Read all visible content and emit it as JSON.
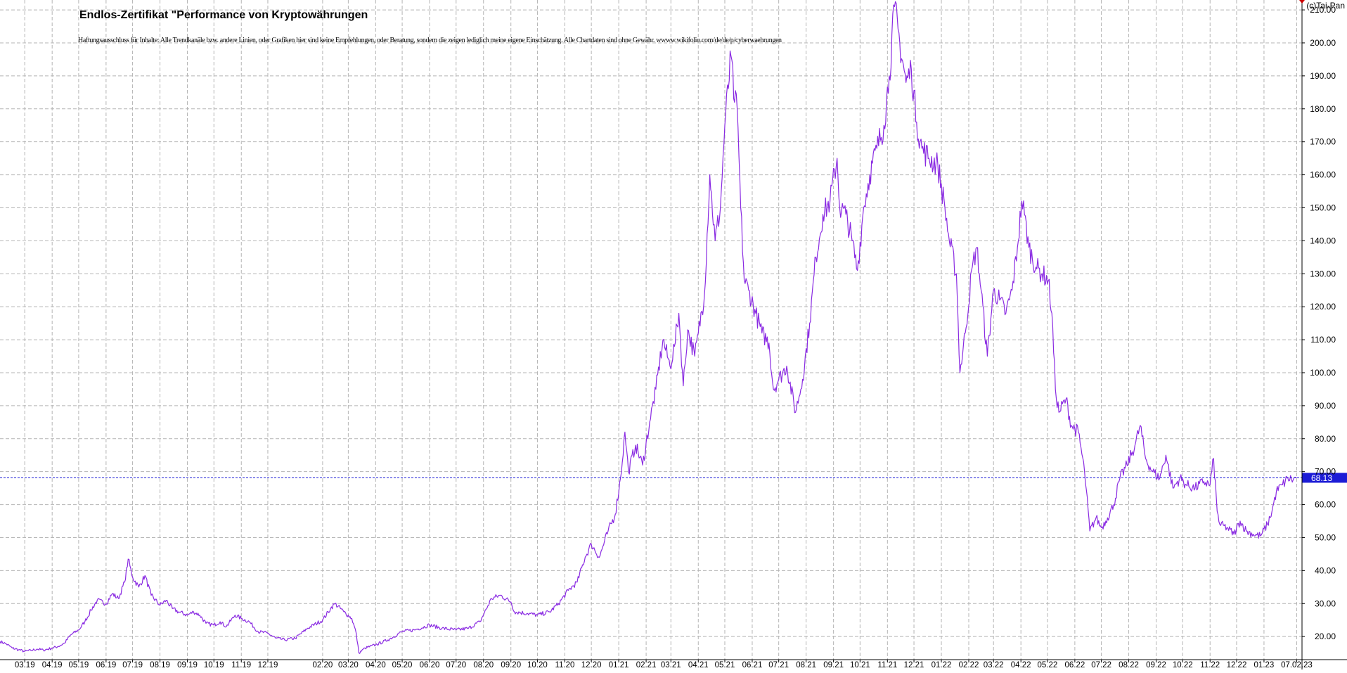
{
  "chart_title": "Endlos-Zertifikat \"Performance von Kryptowährungen",
  "disclaimer": "Haftungsausschluss für Inhalte: Alle Trendkanäle bzw. andere Linien, oder Grafiken hier sind keine Empfehlungen, oder Beratung, sondern die zeigen lediglich meine eigene Einschätzung. Alle Chartdaten sind ohne Gewähr. wwww.wikifolio.com/de/de/p/cyberwaehrungen",
  "copyright": "(c)Tai-Pan",
  "colors": {
    "line": "#8a2be2",
    "current_marker": "#1c1cd6",
    "grid": "#b4b4b4",
    "background": "#ffffff"
  },
  "chart_data": {
    "type": "line",
    "title": "Endlos-Zertifikat \"Performance von Kryptowährungen",
    "xlabel": "",
    "ylabel": "",
    "ylim": [
      13,
      213
    ],
    "y_ticks": [
      20,
      30,
      40,
      50,
      60,
      70,
      80,
      90,
      100,
      110,
      120,
      130,
      140,
      150,
      160,
      170,
      180,
      190,
      200,
      210
    ],
    "y_tick_labels": [
      "20.00",
      "30.00",
      "40.00",
      "50.00",
      "60.00",
      "70.00",
      "80.00",
      "90.00",
      "100.00",
      "110.00",
      "120.00",
      "130.00",
      "140.00",
      "150.00",
      "160.00",
      "170.00",
      "180.00",
      "190.00",
      "200.00",
      "210.00"
    ],
    "x_range": [
      "2019-02-01",
      "2023-02-13"
    ],
    "x_ticks": [
      {
        "label": "03.19",
        "date": "2019-03-01"
      },
      {
        "label": "04.19",
        "date": "2019-04-01"
      },
      {
        "label": "05.19",
        "date": "2019-05-01"
      },
      {
        "label": "06.19",
        "date": "2019-06-01"
      },
      {
        "label": "07.19",
        "date": "2019-07-01"
      },
      {
        "label": "08.19",
        "date": "2019-08-01"
      },
      {
        "label": "09.19",
        "date": "2019-09-01"
      },
      {
        "label": "10.19",
        "date": "2019-10-01"
      },
      {
        "label": "11.19",
        "date": "2019-11-01"
      },
      {
        "label": "12.19",
        "date": "2019-12-01"
      },
      {
        "label": "02.20",
        "date": "2020-02-01"
      },
      {
        "label": "03.20",
        "date": "2020-03-01"
      },
      {
        "label": "04.20",
        "date": "2020-04-01"
      },
      {
        "label": "05.20",
        "date": "2020-05-01"
      },
      {
        "label": "06.20",
        "date": "2020-06-01"
      },
      {
        "label": "07.20",
        "date": "2020-07-01"
      },
      {
        "label": "08.20",
        "date": "2020-08-01"
      },
      {
        "label": "09.20",
        "date": "2020-09-01"
      },
      {
        "label": "10.20",
        "date": "2020-10-01"
      },
      {
        "label": "11.20",
        "date": "2020-11-01"
      },
      {
        "label": "12.20",
        "date": "2020-12-01"
      },
      {
        "label": "01.21",
        "date": "2021-01-01"
      },
      {
        "label": "02.21",
        "date": "2021-02-01"
      },
      {
        "label": "03.21",
        "date": "2021-03-01"
      },
      {
        "label": "04.21",
        "date": "2021-04-01"
      },
      {
        "label": "05.21",
        "date": "2021-05-01"
      },
      {
        "label": "06.21",
        "date": "2021-06-01"
      },
      {
        "label": "07.21",
        "date": "2021-07-01"
      },
      {
        "label": "08.21",
        "date": "2021-08-01"
      },
      {
        "label": "09.21",
        "date": "2021-09-01"
      },
      {
        "label": "10.21",
        "date": "2021-10-01"
      },
      {
        "label": "11.21",
        "date": "2021-11-01"
      },
      {
        "label": "12.21",
        "date": "2021-12-01"
      },
      {
        "label": "01.22",
        "date": "2022-01-01"
      },
      {
        "label": "02.22",
        "date": "2022-02-01"
      },
      {
        "label": "03.22",
        "date": "2022-03-01"
      },
      {
        "label": "04.22",
        "date": "2022-04-01"
      },
      {
        "label": "05.22",
        "date": "2022-05-01"
      },
      {
        "label": "06.22",
        "date": "2022-06-01"
      },
      {
        "label": "07.22",
        "date": "2022-07-01"
      },
      {
        "label": "08.22",
        "date": "2022-08-01"
      },
      {
        "label": "09.22",
        "date": "2022-09-01"
      },
      {
        "label": "10.22",
        "date": "2022-10-01"
      },
      {
        "label": "11.22",
        "date": "2022-11-01"
      },
      {
        "label": "12.22",
        "date": "2022-12-01"
      },
      {
        "label": "01.23",
        "date": "2023-01-01"
      },
      {
        "label": "07.02.23",
        "date": "2023-02-07"
      }
    ],
    "current_value": 68.13,
    "current_label": "68.13",
    "grid": true,
    "series": [
      {
        "values": [
          [
            "2019-02-01",
            18.5
          ],
          [
            "2019-02-08",
            17.8
          ],
          [
            "2019-02-15",
            16.5
          ],
          [
            "2019-02-22",
            16.0
          ],
          [
            "2019-03-01",
            15.5
          ],
          [
            "2019-03-08",
            15.8
          ],
          [
            "2019-03-15",
            16.2
          ],
          [
            "2019-03-22",
            15.9
          ],
          [
            "2019-04-01",
            16.5
          ],
          [
            "2019-04-08",
            17.0
          ],
          [
            "2019-04-15",
            18.0
          ],
          [
            "2019-04-22",
            20.5
          ],
          [
            "2019-05-01",
            22.0
          ],
          [
            "2019-05-08",
            24.5
          ],
          [
            "2019-05-15",
            28.0
          ],
          [
            "2019-05-22",
            31.0
          ],
          [
            "2019-06-01",
            30.0
          ],
          [
            "2019-06-08",
            33.0
          ],
          [
            "2019-06-15",
            31.5
          ],
          [
            "2019-06-22",
            36.5
          ],
          [
            "2019-06-26",
            43.5
          ],
          [
            "2019-07-01",
            38.0
          ],
          [
            "2019-07-08",
            35.0
          ],
          [
            "2019-07-15",
            38.5
          ],
          [
            "2019-07-22",
            32.5
          ],
          [
            "2019-08-01",
            29.5
          ],
          [
            "2019-08-08",
            31.0
          ],
          [
            "2019-08-15",
            28.5
          ],
          [
            "2019-08-22",
            27.5
          ],
          [
            "2019-09-01",
            26.5
          ],
          [
            "2019-09-08",
            27.5
          ],
          [
            "2019-09-15",
            26.5
          ],
          [
            "2019-09-22",
            24.0
          ],
          [
            "2019-10-01",
            23.5
          ],
          [
            "2019-10-08",
            24.5
          ],
          [
            "2019-10-15",
            23.0
          ],
          [
            "2019-10-25",
            26.5
          ],
          [
            "2019-11-01",
            25.5
          ],
          [
            "2019-11-10",
            24.5
          ],
          [
            "2019-11-20",
            21.5
          ],
          [
            "2019-12-01",
            21.0
          ],
          [
            "2019-12-10",
            19.5
          ],
          [
            "2019-12-20",
            19.0
          ],
          [
            "2020-01-01",
            19.5
          ],
          [
            "2020-01-15",
            22.5
          ],
          [
            "2020-02-01",
            25.0
          ],
          [
            "2020-02-10",
            28.5
          ],
          [
            "2020-02-15",
            30.0
          ],
          [
            "2020-02-25",
            27.5
          ],
          [
            "2020-03-05",
            25.5
          ],
          [
            "2020-03-10",
            21.0
          ],
          [
            "2020-03-13",
            15.0
          ],
          [
            "2020-03-20",
            16.5
          ],
          [
            "2020-04-01",
            17.5
          ],
          [
            "2020-04-15",
            19.0
          ],
          [
            "2020-05-01",
            21.5
          ],
          [
            "2020-05-15",
            22.0
          ],
          [
            "2020-06-01",
            23.5
          ],
          [
            "2020-06-15",
            22.5
          ],
          [
            "2020-07-01",
            22.0
          ],
          [
            "2020-07-15",
            22.5
          ],
          [
            "2020-07-28",
            24.5
          ],
          [
            "2020-08-10",
            31.5
          ],
          [
            "2020-08-20",
            32.5
          ],
          [
            "2020-09-01",
            30.5
          ],
          [
            "2020-09-05",
            27.5
          ],
          [
            "2020-09-20",
            27.0
          ],
          [
            "2020-10-01",
            26.5
          ],
          [
            "2020-10-15",
            27.5
          ],
          [
            "2020-10-25",
            30.0
          ],
          [
            "2020-11-05",
            34.0
          ],
          [
            "2020-11-15",
            36.5
          ],
          [
            "2020-11-24",
            44.0
          ],
          [
            "2020-12-01",
            48.0
          ],
          [
            "2020-12-10",
            44.0
          ],
          [
            "2020-12-20",
            52.0
          ],
          [
            "2020-12-28",
            57.0
          ],
          [
            "2021-01-03",
            68.0
          ],
          [
            "2021-01-08",
            82.0
          ],
          [
            "2021-01-12",
            70.0
          ],
          [
            "2021-01-20",
            78.0
          ],
          [
            "2021-01-28",
            72.0
          ],
          [
            "2021-02-05",
            85.0
          ],
          [
            "2021-02-12",
            95.0
          ],
          [
            "2021-02-20",
            110.0
          ],
          [
            "2021-02-28",
            102.0
          ],
          [
            "2021-03-05",
            108.0
          ],
          [
            "2021-03-10",
            118.0
          ],
          [
            "2021-03-15",
            96.0
          ],
          [
            "2021-03-20",
            113.0
          ],
          [
            "2021-03-28",
            105.0
          ],
          [
            "2021-04-01",
            112.0
          ],
          [
            "2021-04-08",
            124.0
          ],
          [
            "2021-04-14",
            160.0
          ],
          [
            "2021-04-20",
            140.0
          ],
          [
            "2021-04-26",
            150.0
          ],
          [
            "2021-05-01",
            175.0
          ],
          [
            "2021-05-08",
            196.0
          ],
          [
            "2021-05-12",
            182.0
          ],
          [
            "2021-05-15",
            180.0
          ],
          [
            "2021-05-19",
            150.0
          ],
          [
            "2021-05-23",
            128.0
          ],
          [
            "2021-05-28",
            125.0
          ],
          [
            "2021-06-05",
            118.0
          ],
          [
            "2021-06-12",
            112.0
          ],
          [
            "2021-06-20",
            109.0
          ],
          [
            "2021-06-25",
            95.0
          ],
          [
            "2021-07-01",
            98.0
          ],
          [
            "2021-07-10",
            102.0
          ],
          [
            "2021-07-20",
            88.0
          ],
          [
            "2021-07-28",
            98.0
          ],
          [
            "2021-08-05",
            115.0
          ],
          [
            "2021-08-12",
            135.0
          ],
          [
            "2021-08-20",
            148.0
          ],
          [
            "2021-08-28",
            152.0
          ],
          [
            "2021-09-05",
            165.0
          ],
          [
            "2021-09-08",
            150.0
          ],
          [
            "2021-09-15",
            148.0
          ],
          [
            "2021-09-22",
            140.0
          ],
          [
            "2021-09-28",
            131.0
          ],
          [
            "2021-10-05",
            150.0
          ],
          [
            "2021-10-12",
            160.0
          ],
          [
            "2021-10-20",
            168.0
          ],
          [
            "2021-10-28",
            175.0
          ],
          [
            "2021-11-03",
            190.0
          ],
          [
            "2021-11-09",
            211.0
          ],
          [
            "2021-11-15",
            200.0
          ],
          [
            "2021-11-22",
            188.0
          ],
          [
            "2021-11-28",
            192.0
          ],
          [
            "2021-12-04",
            176.0
          ],
          [
            "2021-12-10",
            168.0
          ],
          [
            "2021-12-18",
            165.0
          ],
          [
            "2021-12-28",
            163.0
          ],
          [
            "2022-01-05",
            150.0
          ],
          [
            "2022-01-10",
            140.0
          ],
          [
            "2022-01-18",
            130.0
          ],
          [
            "2022-01-22",
            100.0
          ],
          [
            "2022-01-28",
            112.0
          ],
          [
            "2022-02-05",
            132.0
          ],
          [
            "2022-02-10",
            138.0
          ],
          [
            "2022-02-15",
            125.0
          ],
          [
            "2022-02-22",
            105.0
          ],
          [
            "2022-03-01",
            125.0
          ],
          [
            "2022-03-08",
            122.0
          ],
          [
            "2022-03-15",
            118.0
          ],
          [
            "2022-03-22",
            125.0
          ],
          [
            "2022-03-28",
            138.0
          ],
          [
            "2022-04-02",
            152.0
          ],
          [
            "2022-04-05",
            148.0
          ],
          [
            "2022-04-10",
            138.0
          ],
          [
            "2022-04-18",
            132.0
          ],
          [
            "2022-04-25",
            130.0
          ],
          [
            "2022-05-02",
            128.0
          ],
          [
            "2022-05-06",
            118.0
          ],
          [
            "2022-05-10",
            95.0
          ],
          [
            "2022-05-14",
            88.0
          ],
          [
            "2022-05-22",
            92.0
          ],
          [
            "2022-05-28",
            84.0
          ],
          [
            "2022-06-05",
            82.0
          ],
          [
            "2022-06-12",
            70.0
          ],
          [
            "2022-06-18",
            52.0
          ],
          [
            "2022-06-25",
            56.0
          ],
          [
            "2022-07-01",
            53.0
          ],
          [
            "2022-07-08",
            56.0
          ],
          [
            "2022-07-15",
            60.0
          ],
          [
            "2022-07-22",
            68.0
          ],
          [
            "2022-07-30",
            72.0
          ],
          [
            "2022-08-08",
            78.0
          ],
          [
            "2022-08-14",
            84.0
          ],
          [
            "2022-08-20",
            74.0
          ],
          [
            "2022-08-28",
            70.0
          ],
          [
            "2022-09-05",
            68.0
          ],
          [
            "2022-09-12",
            75.0
          ],
          [
            "2022-09-20",
            65.0
          ],
          [
            "2022-09-28",
            68.0
          ],
          [
            "2022-10-05",
            66.0
          ],
          [
            "2022-10-15",
            65.0
          ],
          [
            "2022-10-25",
            67.0
          ],
          [
            "2022-11-01",
            66.0
          ],
          [
            "2022-11-05",
            74.0
          ],
          [
            "2022-11-09",
            58.0
          ],
          [
            "2022-11-12",
            54.0
          ],
          [
            "2022-11-20",
            53.0
          ],
          [
            "2022-11-28",
            51.0
          ],
          [
            "2022-12-05",
            55.0
          ],
          [
            "2022-12-12",
            52.0
          ],
          [
            "2022-12-20",
            51.0
          ],
          [
            "2022-12-28",
            50.5
          ],
          [
            "2023-01-05",
            54.0
          ],
          [
            "2023-01-10",
            58.0
          ],
          [
            "2023-01-15",
            64.0
          ],
          [
            "2023-01-22",
            66.0
          ],
          [
            "2023-01-28",
            68.0
          ],
          [
            "2023-02-03",
            67.5
          ],
          [
            "2023-02-07",
            68.13
          ]
        ]
      }
    ]
  }
}
